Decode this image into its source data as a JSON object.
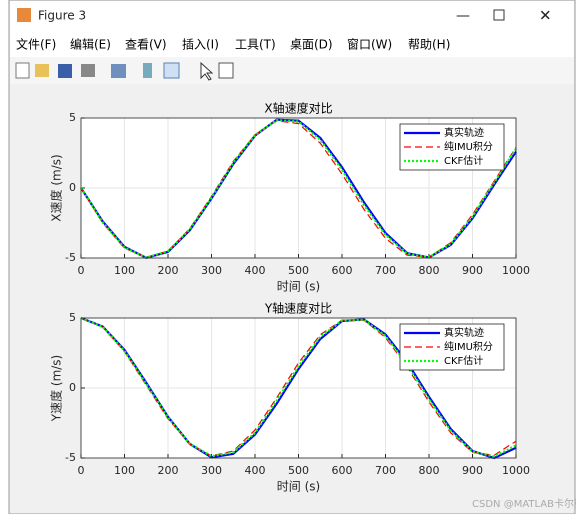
{
  "window": {
    "title": "Figure 3",
    "menus": [
      "文件(F)",
      "编辑(E)",
      "查看(V)",
      "插入(I)",
      "工具(T)",
      "桌面(D)",
      "窗口(W)",
      "帮助(H)"
    ],
    "watermark": "CSDN @MATLAB卡尔曼"
  },
  "chart_data": [
    {
      "type": "line",
      "title": "X轴速度对比",
      "xlabel": "时间 (s)",
      "ylabel": "X速度 (m/s)",
      "x": [
        0,
        50,
        100,
        150,
        200,
        250,
        300,
        350,
        400,
        450,
        500,
        550,
        600,
        650,
        700,
        750,
        800,
        850,
        900,
        950,
        1000
      ],
      "series": [
        {
          "name": "真实轨迹",
          "color": "#0000ff",
          "style": "solid",
          "values": [
            0,
            -2.39,
            -4.2,
            -4.99,
            -4.56,
            -3.02,
            -0.75,
            1.71,
            3.74,
            4.88,
            4.81,
            3.58,
            1.48,
            -1.0,
            -3.22,
            -4.66,
            -4.96,
            -4.06,
            -2.17,
            0.25,
            2.6
          ]
        },
        {
          "name": "纯IMU积分",
          "color": "#ff0000",
          "style": "dashed",
          "values": [
            0,
            -2.5,
            -4.3,
            -4.95,
            -4.5,
            -2.9,
            -0.6,
            1.9,
            3.8,
            4.8,
            4.6,
            3.2,
            1.0,
            -1.5,
            -3.6,
            -4.8,
            -4.95,
            -3.9,
            -1.9,
            0.5,
            2.9
          ]
        },
        {
          "name": "CKF估计",
          "color": "#00ff00",
          "style": "dotted",
          "values": [
            0,
            -2.45,
            -4.25,
            -4.97,
            -4.52,
            -2.95,
            -0.7,
            1.8,
            3.78,
            4.85,
            4.75,
            3.45,
            1.3,
            -1.2,
            -3.35,
            -4.7,
            -4.95,
            -4.0,
            -2.05,
            0.4,
            2.8
          ]
        }
      ],
      "xlim": [
        0,
        1000
      ],
      "ylim": [
        -5,
        5
      ],
      "xticks": [
        0,
        100,
        200,
        300,
        400,
        500,
        600,
        700,
        800,
        900,
        1000
      ],
      "yticks": [
        -5,
        0,
        5
      ],
      "grid": true,
      "legend": "upper right"
    },
    {
      "type": "line",
      "title": "Y轴速度对比",
      "xlabel": "时间 (s)",
      "ylabel": "Y速度 (m/s)",
      "x": [
        0,
        50,
        100,
        150,
        200,
        250,
        300,
        350,
        400,
        450,
        500,
        550,
        600,
        650,
        700,
        750,
        800,
        850,
        900,
        950,
        1000
      ],
      "series": [
        {
          "name": "真实轨迹",
          "color": "#0000ff",
          "style": "solid",
          "values": [
            5,
            4.39,
            2.72,
            0.38,
            -2.06,
            -3.99,
            -4.95,
            -4.7,
            -3.32,
            -1.11,
            1.36,
            3.5,
            4.78,
            4.9,
            3.83,
            1.83,
            -0.63,
            -2.93,
            -4.5,
            -5.0,
            -4.27
          ]
        },
        {
          "name": "纯IMU积分",
          "color": "#ff0000",
          "style": "dashed",
          "values": [
            5,
            4.35,
            2.6,
            0.2,
            -2.2,
            -4.0,
            -4.85,
            -4.5,
            -3.0,
            -0.7,
            1.8,
            3.8,
            4.85,
            4.85,
            3.6,
            1.5,
            -1.0,
            -3.2,
            -4.6,
            -4.8,
            -3.8
          ]
        },
        {
          "name": "CKF估计",
          "color": "#00ff00",
          "style": "dotted",
          "values": [
            5,
            4.37,
            2.65,
            0.3,
            -2.1,
            -3.98,
            -4.88,
            -4.6,
            -3.2,
            -0.9,
            1.55,
            3.65,
            4.82,
            4.88,
            3.72,
            1.68,
            -0.8,
            -3.05,
            -4.55,
            -4.9,
            -4.1
          ]
        }
      ],
      "xlim": [
        0,
        1000
      ],
      "ylim": [
        -5,
        5
      ],
      "xticks": [
        0,
        100,
        200,
        300,
        400,
        500,
        600,
        700,
        800,
        900,
        1000
      ],
      "yticks": [
        -5,
        0,
        5
      ],
      "grid": true,
      "legend": "upper right"
    }
  ]
}
